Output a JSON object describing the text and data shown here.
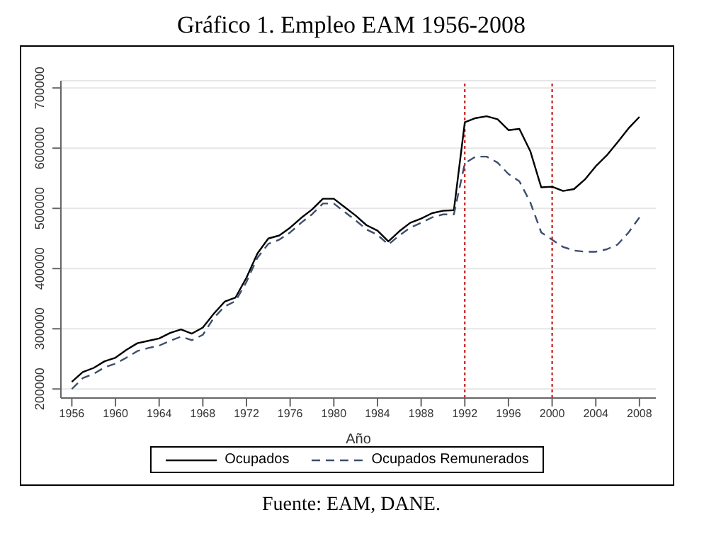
{
  "chart_data": {
    "type": "line",
    "title": "Gráfico 1. Empleo EAM 1956-2008",
    "xlabel": "Año",
    "x": [
      1956,
      1957,
      1958,
      1959,
      1960,
      1961,
      1962,
      1963,
      1964,
      1965,
      1966,
      1967,
      1968,
      1969,
      1970,
      1971,
      1972,
      1973,
      1974,
      1975,
      1976,
      1977,
      1978,
      1979,
      1980,
      1981,
      1982,
      1983,
      1984,
      1985,
      1986,
      1987,
      1988,
      1989,
      1990,
      1991,
      1992,
      1993,
      1994,
      1995,
      1996,
      1997,
      1998,
      1999,
      2000,
      2001,
      2002,
      2003,
      2004,
      2005,
      2006,
      2007,
      2008
    ],
    "series": [
      {
        "name": "Ocupados",
        "color": "#000000",
        "line_style": "solid",
        "values": [
          212000,
          228000,
          235000,
          246000,
          252000,
          265000,
          276000,
          280000,
          284000,
          293000,
          299000,
          292000,
          302000,
          325000,
          345000,
          352000,
          385000,
          425000,
          450000,
          455000,
          468000,
          484000,
          498000,
          516000,
          516000,
          502000,
          488000,
          472000,
          463000,
          445000,
          462000,
          476000,
          483000,
          492000,
          496000,
          497000,
          643000,
          650000,
          653000,
          648000,
          630000,
          632000,
          595000,
          535000,
          536000,
          529000,
          532000,
          548000,
          570000,
          588000,
          610000,
          633000,
          652000
        ]
      },
      {
        "name": "Ocupados Remunerados",
        "color": "#3c4e6e",
        "line_style": "dashed",
        "values": [
          200000,
          218000,
          225000,
          236000,
          242000,
          252000,
          263000,
          268000,
          272000,
          280000,
          287000,
          281000,
          290000,
          318000,
          337000,
          346000,
          378000,
          418000,
          441000,
          448000,
          460000,
          476000,
          490000,
          508000,
          508000,
          494000,
          480000,
          465000,
          456000,
          440000,
          455000,
          468000,
          476000,
          485000,
          490000,
          490000,
          575000,
          586000,
          586000,
          576000,
          557000,
          545000,
          510000,
          460000,
          448000,
          436000,
          430000,
          428000,
          428000,
          432000,
          440000,
          460000,
          485000
        ]
      }
    ],
    "xlim": [
      1955,
      2009.5
    ],
    "ylim": [
      185000,
      712000
    ],
    "xticks": [
      1956,
      1960,
      1964,
      1968,
      1972,
      1976,
      1980,
      1984,
      1988,
      1992,
      1996,
      2000,
      2004,
      2008
    ],
    "yticks": [
      200000,
      300000,
      400000,
      500000,
      600000,
      700000
    ],
    "grid": "y",
    "legend": "bottom",
    "marker": "none",
    "ref_lines": [
      {
        "axis": "x",
        "value": 1992,
        "color": "#c00000",
        "line_style": "dotted"
      },
      {
        "axis": "x",
        "value": 2000,
        "color": "#c00000",
        "line_style": "dotted"
      }
    ],
    "annotations": [
      "Fuente: EAM, DANE."
    ]
  }
}
